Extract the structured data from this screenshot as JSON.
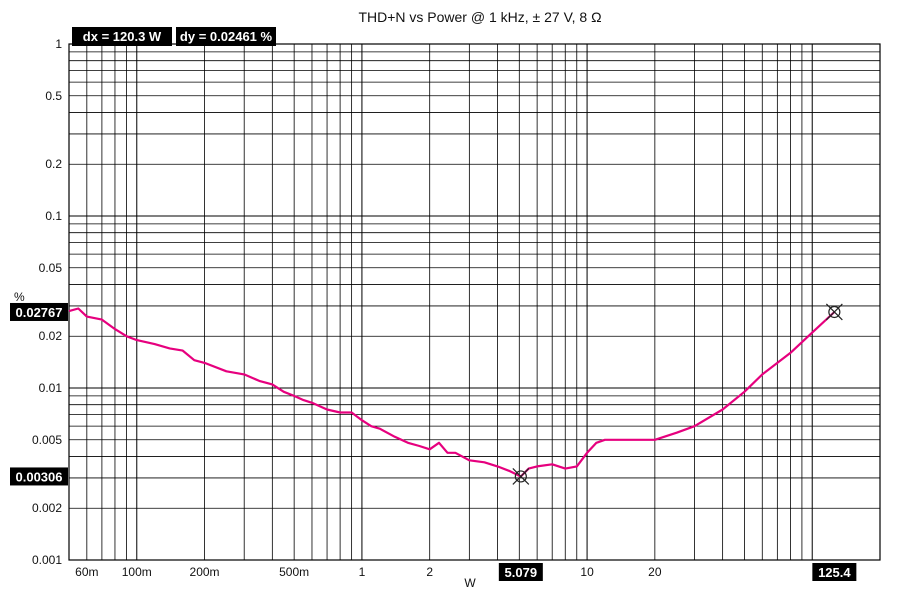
{
  "chart_data": {
    "type": "line",
    "title": "THD+N vs Power @ 1 kHz, ± 27 V, 8 Ω",
    "xlabel": "W",
    "ylabel": "%",
    "xscale": "log",
    "yscale": "log",
    "xlim": [
      0.05,
      200
    ],
    "ylim": [
      0.001,
      1
    ],
    "grid": true,
    "x_ticks": [
      {
        "value": 0.06,
        "label": "60m"
      },
      {
        "value": 0.1,
        "label": "100m"
      },
      {
        "value": 0.2,
        "label": "200m"
      },
      {
        "value": 0.5,
        "label": "500m"
      },
      {
        "value": 1,
        "label": "1"
      },
      {
        "value": 2,
        "label": "2"
      },
      {
        "value": 10,
        "label": "10"
      },
      {
        "value": 20,
        "label": "20"
      }
    ],
    "y_ticks": [
      {
        "value": 1,
        "label": "1"
      },
      {
        "value": 0.5,
        "label": "0.5"
      },
      {
        "value": 0.2,
        "label": "0.2"
      },
      {
        "value": 0.1,
        "label": "0.1"
      },
      {
        "value": 0.05,
        "label": "0.05"
      },
      {
        "value": 0.02,
        "label": "0.02"
      },
      {
        "value": 0.01,
        "label": "0.01"
      },
      {
        "value": 0.005,
        "label": "0.005"
      },
      {
        "value": 0.002,
        "label": "0.002"
      },
      {
        "value": 0.001,
        "label": "0.001"
      }
    ],
    "series": [
      {
        "color": "#e6007e",
        "x": [
          0.05,
          0.055,
          0.06,
          0.07,
          0.08,
          0.09,
          0.1,
          0.12,
          0.14,
          0.16,
          0.18,
          0.2,
          0.25,
          0.3,
          0.35,
          0.4,
          0.45,
          0.5,
          0.55,
          0.6,
          0.7,
          0.8,
          0.9,
          1.0,
          1.1,
          1.2,
          1.4,
          1.6,
          1.8,
          2.0,
          2.2,
          2.4,
          2.6,
          3.0,
          3.5,
          4.0,
          4.5,
          5.079,
          5.5,
          6.0,
          7.0,
          8.0,
          9.0,
          10,
          11,
          12,
          15,
          20,
          25,
          30,
          40,
          50,
          60,
          80,
          100,
          125.4
        ],
        "y": [
          0.028,
          0.029,
          0.026,
          0.025,
          0.022,
          0.02,
          0.019,
          0.018,
          0.017,
          0.0165,
          0.0145,
          0.014,
          0.0125,
          0.012,
          0.011,
          0.0105,
          0.0095,
          0.009,
          0.0085,
          0.0082,
          0.0075,
          0.0072,
          0.0072,
          0.0065,
          0.006,
          0.0058,
          0.0052,
          0.0048,
          0.0046,
          0.0044,
          0.0048,
          0.0042,
          0.0042,
          0.0038,
          0.0037,
          0.0035,
          0.0033,
          0.00306,
          0.0034,
          0.0035,
          0.0036,
          0.0034,
          0.0035,
          0.0042,
          0.0048,
          0.005,
          0.005,
          0.005,
          0.0055,
          0.006,
          0.0075,
          0.0095,
          0.012,
          0.016,
          0.021,
          0.02767
        ]
      }
    ],
    "cursors": {
      "dx_label": "dx = 120.3 W",
      "dy_label": "dy = 0.02461 %",
      "marker1": {
        "x": 5.079,
        "y": 0.00306,
        "x_label": "5.079",
        "y_label": "0.00306"
      },
      "marker2": {
        "x": 125.4,
        "y": 0.02767,
        "x_label": "125.4",
        "y_label": "0.02767"
      }
    }
  }
}
